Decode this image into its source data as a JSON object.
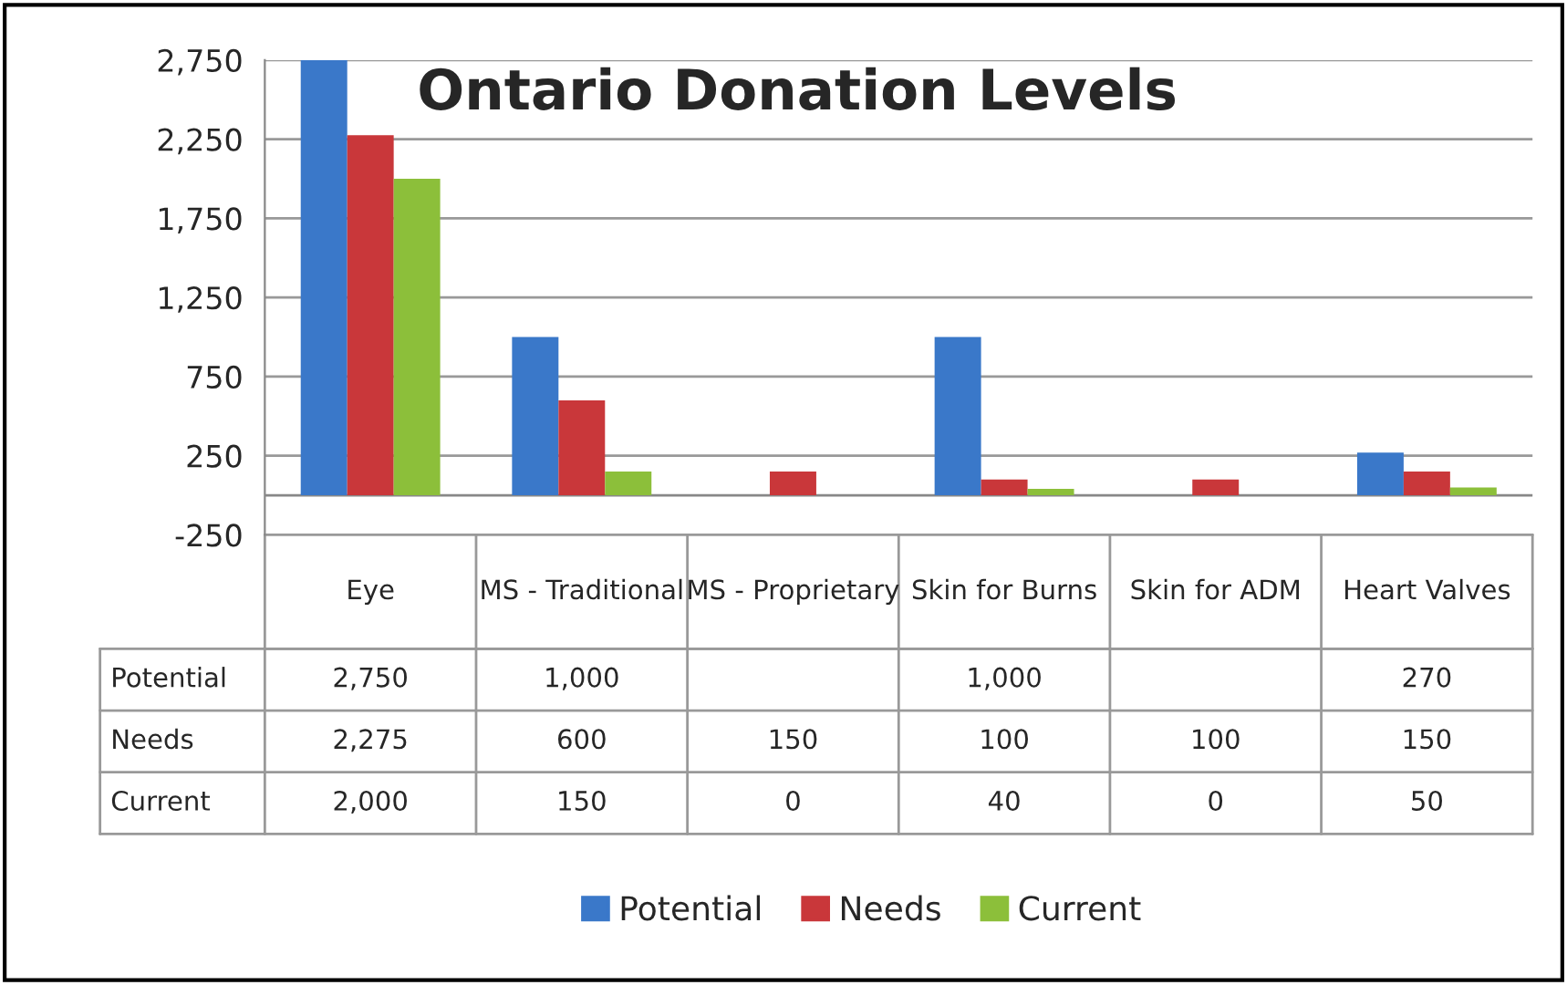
{
  "chart_data": {
    "type": "bar",
    "title": "Ontario Donation Levels",
    "categories": [
      "Eye",
      "MS - Traditional",
      "MS - Proprietary",
      "Skin for Burns",
      "Skin for ADM",
      "Heart Valves"
    ],
    "series": [
      {
        "name": "Potential",
        "color": "#3a78c9",
        "values": [
          2750,
          1000,
          null,
          1000,
          null,
          270
        ],
        "value_labels": [
          "2,750",
          "1,000",
          null,
          "1,000",
          null,
          "270"
        ]
      },
      {
        "name": "Needs",
        "color": "#c9373a",
        "values": [
          2275,
          600,
          150,
          100,
          100,
          150
        ],
        "value_labels": [
          "2,275",
          "600",
          "150",
          "100",
          "100",
          "150"
        ]
      },
      {
        "name": "Current",
        "color": "#8cbf3a",
        "values": [
          2000,
          150,
          0,
          40,
          0,
          50
        ],
        "value_labels": [
          "2,000",
          "150",
          "0",
          "40",
          "0",
          "50"
        ]
      }
    ],
    "ylim": [
      -250,
      2750
    ],
    "yticks": [
      {
        "value": -250,
        "label": "-250"
      },
      250,
      750,
      {
        "value": 1250,
        "label": "1,250"
      },
      {
        "value": 1750,
        "label": "1,750"
      },
      {
        "value": 2250,
        "label": "2,250"
      },
      {
        "value": 2750,
        "label": "2,750"
      }
    ],
    "grid": "y",
    "legend": "bottom"
  }
}
